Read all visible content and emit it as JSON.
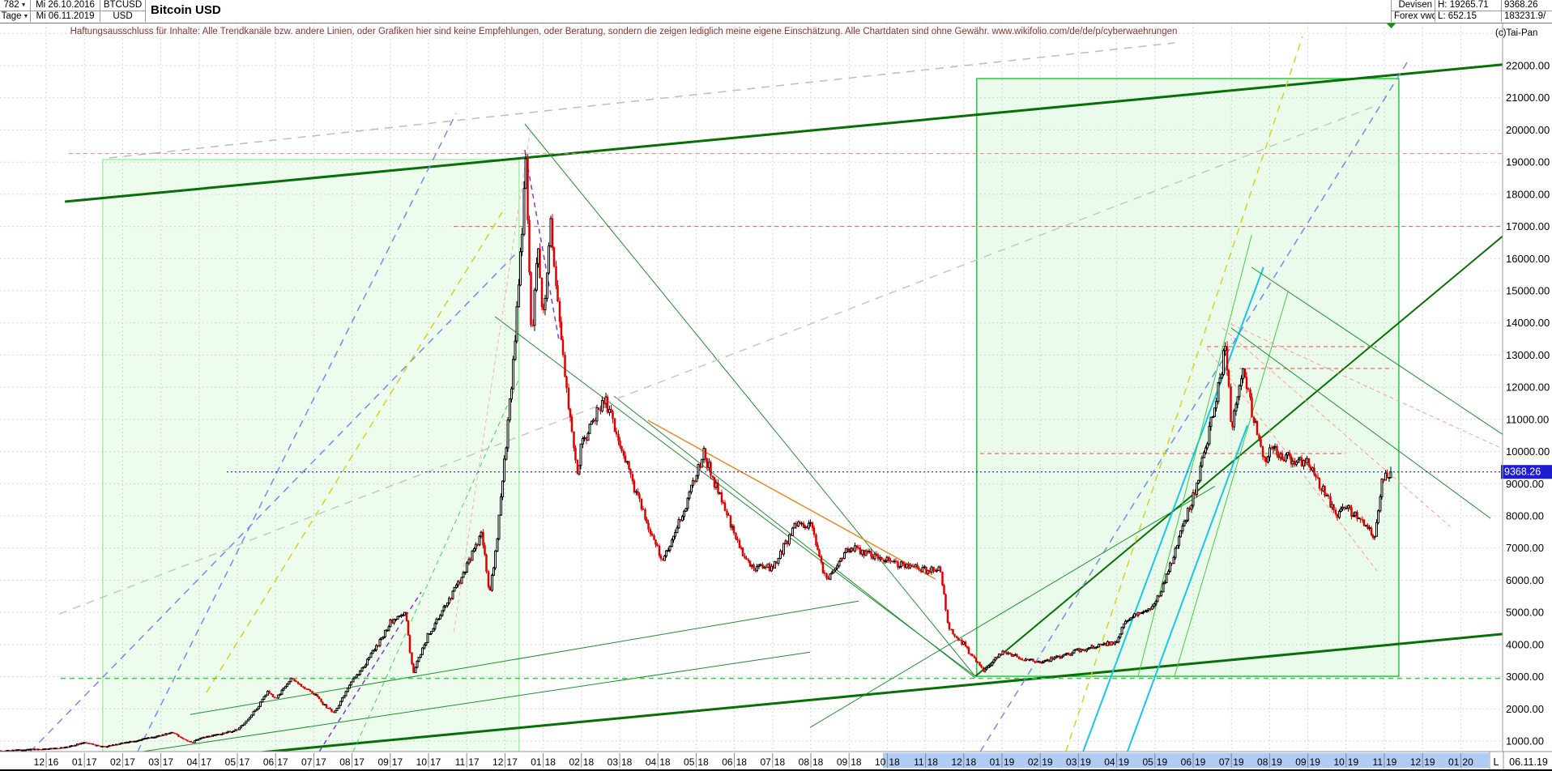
{
  "header": {
    "bars_count": "782",
    "period": "Tage",
    "date_from": "Mi 26.10.2016",
    "date_to": "Mi 06.11.2019",
    "symbol": "BTCUSD",
    "currency": "USD",
    "title": "Bitcoin USD",
    "exchange": "Devisen",
    "source": "Forex vwd",
    "high_label": "H: 19265.71",
    "low_label": "L: 652.15",
    "last_price": "9368.26",
    "secondary_value": "183231.9/",
    "copyright": "(c)Tai-Pan"
  },
  "disclaimer": "Haftungsausschluss für Inhalte: Alle Trendkanäle bzw. andere Linien, oder Grafiken hier sind keine Empfehlungen, oder Beratung, sondern die zeigen lediglich meine eigene Einschätzung. Alle Chartdaten sind ohne Gewähr.  www.wikifolio.com/de/de/p/cyberwaehrungen",
  "price_axis": {
    "labels": [
      "22000.00",
      "21000.00",
      "20000.00",
      "19000.00",
      "18000.00",
      "17000.00",
      "16000.00",
      "15000.00",
      "14000.00",
      "13000.00",
      "12000.00",
      "11000.00",
      "10000.00",
      "9000.00",
      "8000.00",
      "7000.00",
      "6000.00",
      "5000.00",
      "4000.00",
      "3000.00",
      "2000.00",
      "1000.00"
    ],
    "current_price_label": "9368.26"
  },
  "time_axis": {
    "labels": [
      "12.16",
      "01.17",
      "02.17",
      "03.17",
      "04.17",
      "05.17",
      "06.17",
      "07.17",
      "08.17",
      "09.17",
      "10.17",
      "11.17",
      "12.17",
      "01.18",
      "02.18",
      "03.18",
      "04.18",
      "05.18",
      "06.18",
      "07.18",
      "08.18",
      "09.18",
      "10.18",
      "11.18",
      "12.18",
      "01.19",
      "02.19",
      "03.19",
      "04.19",
      "05.19",
      "06.19",
      "07.19",
      "08.19",
      "09.19",
      "10.19",
      "11.19",
      "12.19",
      "01.20"
    ],
    "corner_label": "L",
    "corner_date": "06.11.19",
    "highlight_m": [
      21.89,
      37.74
    ]
  },
  "chart_data": {
    "type": "candlestick",
    "title": "Bitcoin USD",
    "xlabel": "",
    "ylabel": "USD",
    "scale": "linear",
    "ylim": [
      652.15,
      22907
    ],
    "x_range": [
      "26.10.2016",
      "06.11.2019"
    ],
    "key_stats": {
      "high": 19265.71,
      "low": 652.15,
      "last": 9368.26
    },
    "price_path": {
      "unit_x": "months_since_2016-12-01",
      "points": [
        [
          -1.19,
          690
        ],
        [
          -0.5,
          742
        ],
        [
          0,
          755
        ],
        [
          0.5,
          795
        ],
        [
          1,
          963
        ],
        [
          1.5,
          818
        ],
        [
          2,
          935
        ],
        [
          3,
          1180
        ],
        [
          3.3,
          1270
        ],
        [
          3.8,
          945
        ],
        [
          4,
          1080
        ],
        [
          5,
          1350
        ],
        [
          5.8,
          2550
        ],
        [
          6,
          2300
        ],
        [
          6.4,
          2950
        ],
        [
          7,
          2480
        ],
        [
          7.5,
          1870
        ],
        [
          8,
          2875
        ],
        [
          9,
          4700
        ],
        [
          9.4,
          4950
        ],
        [
          9.6,
          3150
        ],
        [
          10,
          4340
        ],
        [
          11,
          6450
        ],
        [
          11.4,
          7450
        ],
        [
          11.6,
          5550
        ],
        [
          12,
          9900
        ],
        [
          12.55,
          19100
        ],
        [
          12.7,
          13500
        ],
        [
          12.85,
          16500
        ],
        [
          13,
          14100
        ],
        [
          13.2,
          17100
        ],
        [
          13.9,
          9200
        ],
        [
          14,
          10200
        ],
        [
          14.6,
          11700
        ],
        [
          15,
          10300
        ],
        [
          15.5,
          8500
        ],
        [
          16,
          6930
        ],
        [
          16.1,
          6600
        ],
        [
          17,
          9240
        ],
        [
          17.2,
          9990
        ],
        [
          18,
          7490
        ],
        [
          18.4,
          6400
        ],
        [
          19,
          6400
        ],
        [
          19.6,
          7730
        ],
        [
          20,
          7730
        ],
        [
          20.4,
          5980
        ],
        [
          21,
          7030
        ],
        [
          22,
          6600
        ],
        [
          23,
          6300
        ],
        [
          23.4,
          6350
        ],
        [
          23.6,
          4500
        ],
        [
          24,
          4020
        ],
        [
          24.5,
          3200
        ],
        [
          25,
          3740
        ],
        [
          26,
          3430
        ],
        [
          27,
          3820
        ],
        [
          28,
          4100
        ],
        [
          28.2,
          4700
        ],
        [
          29,
          5270
        ],
        [
          29.9,
          8300
        ],
        [
          30,
          8560
        ],
        [
          30.85,
          13300
        ],
        [
          31,
          10800
        ],
        [
          31.3,
          12600
        ],
        [
          31.9,
          9500
        ],
        [
          32,
          10080
        ],
        [
          32.9,
          9600
        ],
        [
          33,
          9630
        ],
        [
          33.8,
          8000
        ],
        [
          34,
          8300
        ],
        [
          34.75,
          7400
        ],
        [
          34.95,
          9150
        ],
        [
          35.17,
          9368.26
        ]
      ]
    },
    "candles": {
      "bars": 782,
      "start_m": -1.19,
      "end_m": 35.17,
      "seed": 97531,
      "peak_m": 12.55
    },
    "price_line": {
      "value": 9368.26,
      "from_m": 4.72,
      "color": "#0000bb"
    },
    "boxes": [
      {
        "name": "green-box-2017",
        "x": [
          1.48,
          12.37
        ],
        "y": [
          495,
          19079
        ],
        "stroke": "#7ce87c",
        "fill": "rgba(120,230,120,0.13)",
        "width": 1
      },
      {
        "name": "green-box-2019",
        "x": [
          24.34,
          35.38
        ],
        "y": [
          3011,
          21597
        ],
        "stroke": "#22cc3c",
        "fill": "rgba(120,230,120,0.15)",
        "width": 1.5
      }
    ],
    "annotations": [
      {
        "name": "channel-top",
        "x": [
          0.49,
          39.38
        ],
        "y": [
          17769,
          22176
        ],
        "color": "#067006",
        "width": 3
      },
      {
        "name": "channel-bottom",
        "x": [
          0.49,
          39.38
        ],
        "y": [
          66,
          4473
        ],
        "color": "#067006",
        "width": 3
      },
      {
        "name": "trend-2019-steep",
        "x": [
          24.3,
          39.05
        ],
        "y": [
          3011,
          17643
        ],
        "color": "#067006",
        "width": 2
      },
      {
        "name": "high-line",
        "x": [
          0.59,
          38.37
        ],
        "y": [
          19265.71,
          19265.71
        ],
        "color": "#f08080",
        "width": 1,
        "dash": "5,4"
      },
      {
        "name": "level-17000",
        "x": [
          10.66,
          38.37
        ],
        "y": [
          17000,
          17000
        ],
        "color": "#ee5555",
        "width": 1,
        "dash": "5,4"
      },
      {
        "name": "level-9940",
        "x": [
          24.43,
          33.98
        ],
        "y": [
          9940,
          9940
        ],
        "color": "#ee4444",
        "width": 1,
        "dash": "5,4"
      },
      {
        "name": "level-13260",
        "x": [
          30.36,
          34.81
        ],
        "y": [
          13262,
          13262
        ],
        "color": "#ee4444",
        "width": 1,
        "dash": "5,4"
      },
      {
        "name": "level-12580",
        "x": [
          31.21,
          35.23
        ],
        "y": [
          12582,
          12582
        ],
        "color": "#ee4444",
        "width": 1,
        "dash": "5,4"
      },
      {
        "name": "fan-red-1",
        "x": [
          30.98,
          38.37
        ],
        "y": [
          13966,
          9937
        ],
        "color": "#ff9999",
        "width": 1,
        "dash": "5,4"
      },
      {
        "name": "fan-red-2",
        "x": [
          30.77,
          36.72
        ],
        "y": [
          13840,
          7670
        ],
        "color": "#ff9999",
        "width": 1,
        "dash": "5,4"
      },
      {
        "name": "fan-red-3",
        "x": [
          30.36,
          34.81
        ],
        "y": [
          13211,
          6285
        ],
        "color": "#ff9999",
        "width": 1,
        "dash": "5,4"
      },
      {
        "name": "blue-trend-2017-a",
        "x": [
          2.39,
          10.72
        ],
        "y": [
          667,
          20513
        ],
        "color": "#7788ee",
        "width": 1.5,
        "dash": "9,7"
      },
      {
        "name": "blue-trend-2017-b",
        "x": [
          -0.42,
          12.35
        ],
        "y": [
          667,
          16233
        ],
        "color": "#7788ee",
        "width": 1.5,
        "dash": "9,7"
      },
      {
        "name": "blue-trend-2019",
        "x": [
          24.43,
          35.66
        ],
        "y": [
          667,
          22227
        ],
        "color": "#7788ee",
        "width": 1.5,
        "dash": "9,7"
      },
      {
        "name": "yellow-trend-2017",
        "x": [
          4.19,
          11.93
        ],
        "y": [
          2506,
          17442
        ],
        "color": "#d6d21e",
        "width": 1.5,
        "dash": "9,7"
      },
      {
        "name": "yellow-trend-2019",
        "x": [
          26.67,
          32.86
        ],
        "y": [
          667,
          22907
        ],
        "color": "#d6d21e",
        "width": 1.5,
        "dash": "9,7"
      },
      {
        "name": "cyan-trend-1",
        "x": [
          27.12,
          31.84
        ],
        "y": [
          667,
          15729
        ],
        "color": "#16c8e6",
        "width": 2
      },
      {
        "name": "cyan-trend-2",
        "x": [
          28.28,
          31.42
        ],
        "y": [
          667,
          10818
        ],
        "color": "#16c8e6",
        "width": 2
      },
      {
        "name": "support-fan-a",
        "x": [
          3.77,
          21.25
        ],
        "y": [
          1827,
          5352
        ],
        "color": "#1d8f2d",
        "width": 1
      },
      {
        "name": "support-fan-b",
        "x": [
          1.5,
          19.98
        ],
        "y": [
          492,
          3766
        ],
        "color": "#1d8f2d",
        "width": 1
      },
      {
        "name": "peak-to-low",
        "x": [
          12.52,
          24.3
        ],
        "y": [
          20187,
          3011
        ],
        "color": "#1d8f2d",
        "width": 1
      },
      {
        "name": "desc-2018-a",
        "x": [
          11.74,
          24.3
        ],
        "y": [
          14193,
          3011
        ],
        "color": "#1d8f2d",
        "width": 1
      },
      {
        "name": "desc-2018-b",
        "x": [
          14.85,
          24.3
        ],
        "y": [
          11725,
          2962
        ],
        "color": "#1d8f2d",
        "width": 1
      },
      {
        "name": "cross-low-rising",
        "x": [
          19.98,
          30.57
        ],
        "y": [
          1424,
          8923
        ],
        "color": "#1d8f2d",
        "width": 1
      },
      {
        "name": "steep-2019-a",
        "x": [
          28.56,
          31.53
        ],
        "y": [
          3011,
          16736
        ],
        "color": "#44cc44",
        "width": 1
      },
      {
        "name": "steep-2019-b",
        "x": [
          29.51,
          32.48
        ],
        "y": [
          3011,
          14973
        ],
        "color": "#44cc44",
        "width": 1
      },
      {
        "name": "wedge-down-a",
        "x": [
          31.53,
          38.37
        ],
        "y": [
          15729,
          10315
        ],
        "color": "#1d8f2d",
        "width": 1
      },
      {
        "name": "wedge-down-b",
        "x": [
          31.0,
          37.78
        ],
        "y": [
          13840,
          7923
        ],
        "color": "#1d8f2d",
        "width": 1
      },
      {
        "name": "support-3000-dashed",
        "x": [
          0.38,
          38.37
        ],
        "y": [
          2950,
          2950
        ],
        "color": "#2ed43e",
        "width": 1.5,
        "dash": "6,5"
      },
      {
        "name": "green-dash-steep-2017",
        "x": [
          8.03,
          12.35
        ],
        "y": [
          667,
          12205
        ],
        "color": "#3ed44e",
        "width": 1,
        "dash": "6,5"
      },
      {
        "name": "orange-trend-2018",
        "x": [
          15.74,
          23.26
        ],
        "y": [
          10970,
          6034
        ],
        "color": "#ee8822",
        "width": 1.5
      },
      {
        "name": "violet-2017",
        "x": [
          7.14,
          9.81
        ],
        "y": [
          667,
          5631
        ],
        "color": "#8833dd",
        "width": 1.5,
        "dash": "6,5"
      },
      {
        "name": "violet-peak",
        "x": [
          12.52,
          13.41
        ],
        "y": [
          19381,
          13463
        ],
        "color": "#8833dd",
        "width": 1.5,
        "dash": "6,5"
      },
      {
        "name": "pink-steep-2017",
        "x": [
          10.66,
          12.67
        ],
        "y": [
          4395,
          20010
        ],
        "color": "#ffaaaa",
        "width": 1,
        "dash": "5,4"
      },
      {
        "name": "gray-trend-top",
        "x": [
          1.65,
          29.51
        ],
        "y": [
          19129,
          22705
        ],
        "color": "#bcbcbc",
        "width": 1.5,
        "dash": "10,8"
      },
      {
        "name": "gray-trend-mid",
        "x": [
          0.34,
          34.81
        ],
        "y": [
          4947,
          20766
        ],
        "color": "#c6c6c6",
        "width": 1.5,
        "dash": "10,8"
      }
    ],
    "style": {
      "up_color": "#000000",
      "down_color": "#dd0000",
      "grid_color": "#d6d6d6",
      "price_marker_bg": "#1d1dd0",
      "price_marker_text": "#ffffff",
      "highlight_color": "#b0ccf4",
      "marker_triangle": "#00a000"
    }
  }
}
